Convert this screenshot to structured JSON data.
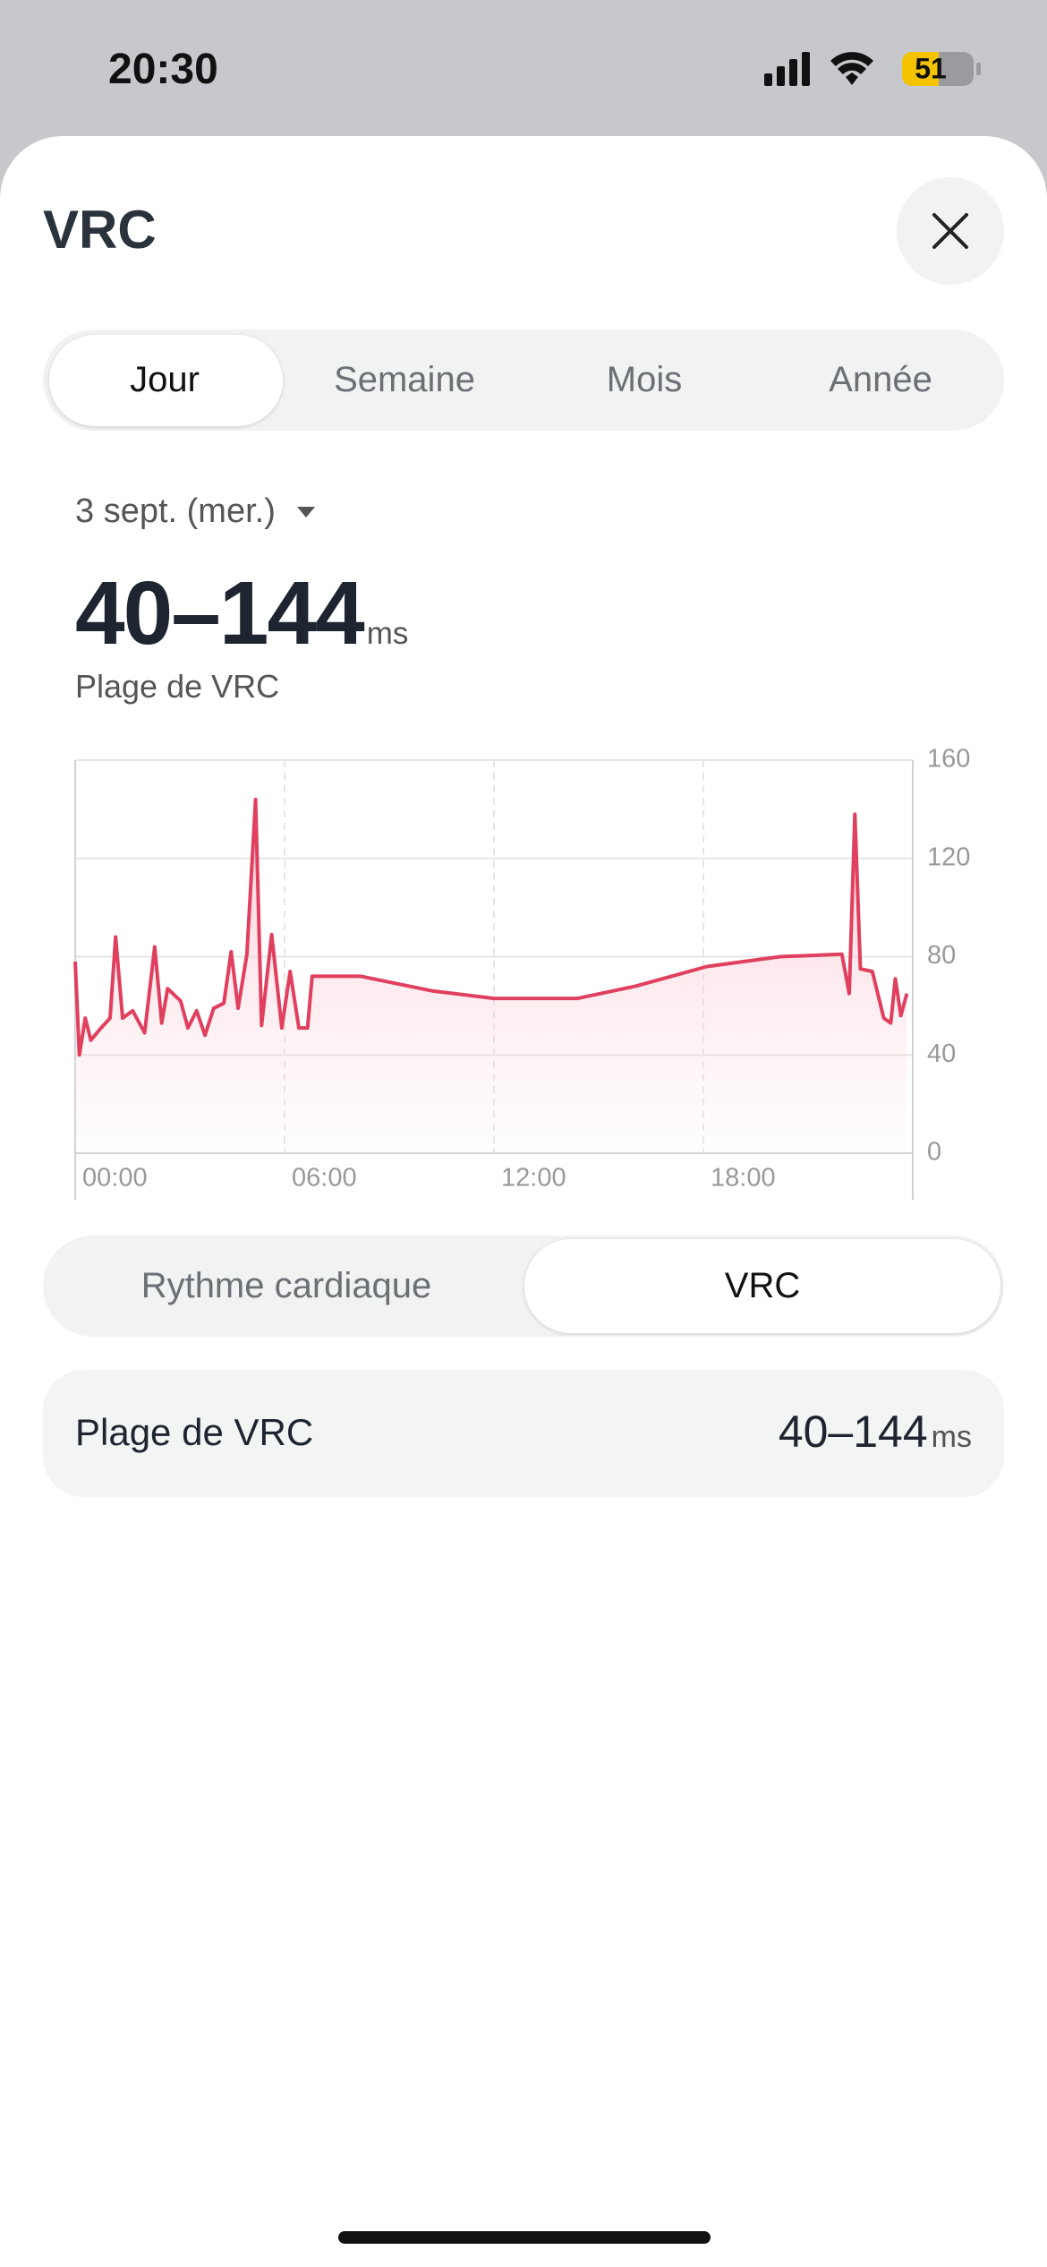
{
  "status_bar": {
    "time": "20:30",
    "battery": "51"
  },
  "header": {
    "title": "VRC"
  },
  "tabs": [
    "Jour",
    "Semaine",
    "Mois",
    "Année"
  ],
  "date": "3 sept. (mer.)",
  "summary": {
    "range": "40–144",
    "unit": "ms",
    "label": "Plage de VRC"
  },
  "chart_data": {
    "type": "line",
    "color": "#e0405e",
    "x": [
      0,
      0.12,
      0.29,
      0.45,
      0.74,
      1.0,
      1.16,
      1.36,
      1.65,
      1.99,
      2.28,
      2.48,
      2.65,
      3.02,
      3.23,
      3.48,
      3.72,
      3.97,
      4.26,
      4.47,
      4.67,
      4.92,
      5.17,
      5.34,
      5.63,
      5.92,
      6.16,
      6.41,
      6.66,
      6.79,
      8.19,
      10.26,
      12.0,
      14.4,
      16.06,
      18.1,
      20.2,
      21.97,
      22.18,
      22.34,
      22.5,
      22.84,
      23.17,
      23.37,
      23.5,
      23.66,
      23.83
    ],
    "values": [
      78,
      40,
      55,
      46,
      51,
      55,
      88,
      55,
      58,
      49,
      84,
      53,
      67,
      62,
      51,
      58,
      48,
      59,
      61,
      82,
      59,
      81,
      144,
      52,
      89,
      51,
      74,
      51,
      51,
      72,
      72,
      66,
      63,
      63,
      68,
      76,
      80,
      81,
      65,
      138,
      75,
      74,
      55,
      53,
      71,
      56,
      65
    ],
    "xlim": [
      0,
      24
    ],
    "xticks": [
      {
        "value": 0,
        "label": "00:00"
      },
      {
        "value": 6,
        "label": "06:00"
      },
      {
        "value": 12,
        "label": "12:00"
      },
      {
        "value": 18,
        "label": "18:00"
      }
    ],
    "ylim": [
      0,
      160
    ],
    "yticks": [
      0,
      40,
      80,
      120,
      160
    ],
    "grid": true
  },
  "toggle": [
    "Rythme cardiaque",
    "VRC"
  ],
  "card": {
    "label": "Plage de VRC",
    "value": "40–144",
    "unit": "ms"
  }
}
